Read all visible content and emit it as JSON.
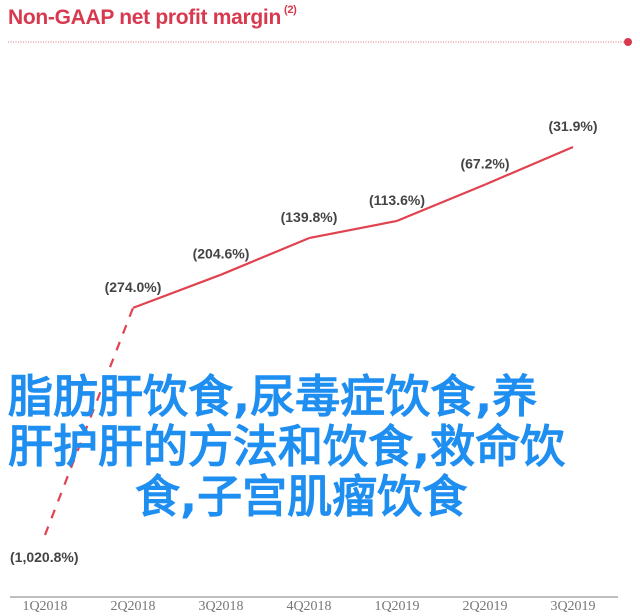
{
  "chart_data": {
    "type": "line",
    "title": "Non-GAAP net profit margin",
    "title_footnote": "(2)",
    "categories": [
      "1Q2018",
      "2Q2018",
      "3Q2018",
      "4Q2018",
      "1Q2019",
      "2Q2019",
      "3Q2019"
    ],
    "values": [
      -1020.8,
      -274.0,
      -204.6,
      -139.8,
      -113.6,
      -67.2,
      -31.9
    ],
    "data_labels": [
      "(1,020.8%)",
      "(274.0%)",
      "(204.6%)",
      "(139.8%)",
      "(113.6%)",
      "(67.2%)",
      "(31.9%)"
    ],
    "dashed_segments": [
      0
    ],
    "xlabel": "",
    "ylabel": "",
    "ylim": [
      -1020.8,
      0
    ],
    "grid": false,
    "legend": "none",
    "colors": {
      "line": "#e0424f",
      "title": "#d8394f",
      "labels": "#444444",
      "axis": "#aaaaaa"
    }
  },
  "overlay": {
    "lines": [
      "脂肪肝饮食,尿毒症饮食,养",
      "肝护肝的方法和饮食,救命饮",
      "食,子宫肌瘤饮食"
    ],
    "color": "#1f8ef1"
  }
}
